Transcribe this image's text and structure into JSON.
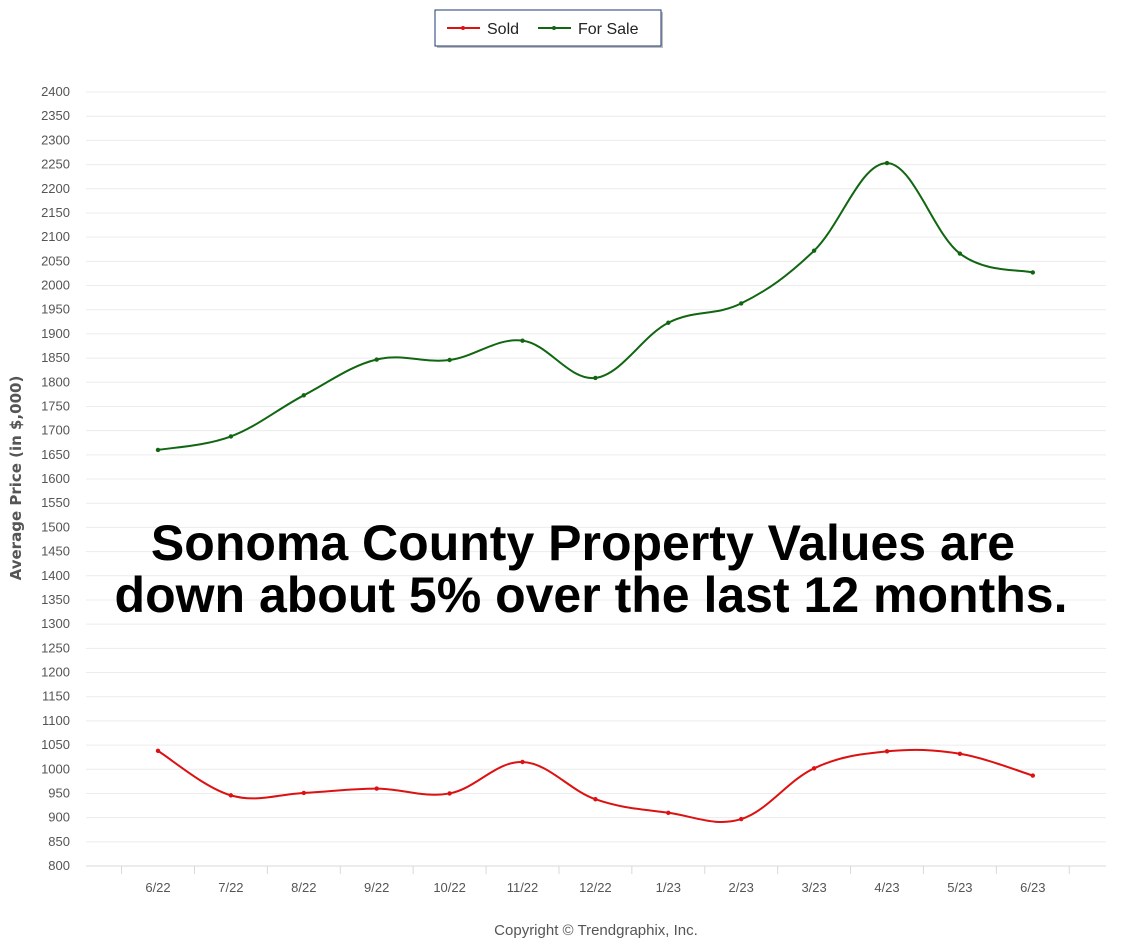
{
  "chart_data": {
    "type": "line",
    "categories": [
      "6/22",
      "7/22",
      "8/22",
      "9/22",
      "10/22",
      "11/22",
      "12/22",
      "1/23",
      "2/23",
      "3/23",
      "4/23",
      "5/23",
      "6/23"
    ],
    "series": [
      {
        "name": "Sold",
        "color": "#dd1111",
        "values": [
          1038,
          946,
          951,
          960,
          950,
          1015,
          938,
          910,
          897,
          1002,
          1037,
          1032,
          987
        ]
      },
      {
        "name": "For Sale",
        "color": "#116611",
        "values": [
          1660,
          1688,
          1773,
          1847,
          1846,
          1886,
          1809,
          1923,
          1963,
          2072,
          2253,
          2066,
          2027
        ]
      }
    ],
    "ylabel": "Average Price (in $,000)",
    "xlabel": "",
    "ylim": [
      800,
      2400
    ],
    "yticks": [
      800,
      850,
      900,
      950,
      1000,
      1050,
      1100,
      1150,
      1200,
      1250,
      1300,
      1350,
      1400,
      1450,
      1500,
      1550,
      1600,
      1650,
      1700,
      1750,
      1800,
      1850,
      1900,
      1950,
      2000,
      2050,
      2100,
      2150,
      2200,
      2250,
      2300,
      2350,
      2400
    ],
    "grid": true,
    "legend_position": "top-center"
  },
  "overlay": {
    "line1": "Sonoma County Property Values are",
    "line2": "down about 5% over the last 12 months."
  },
  "copyright": "Copyright © Trendgraphix, Inc."
}
